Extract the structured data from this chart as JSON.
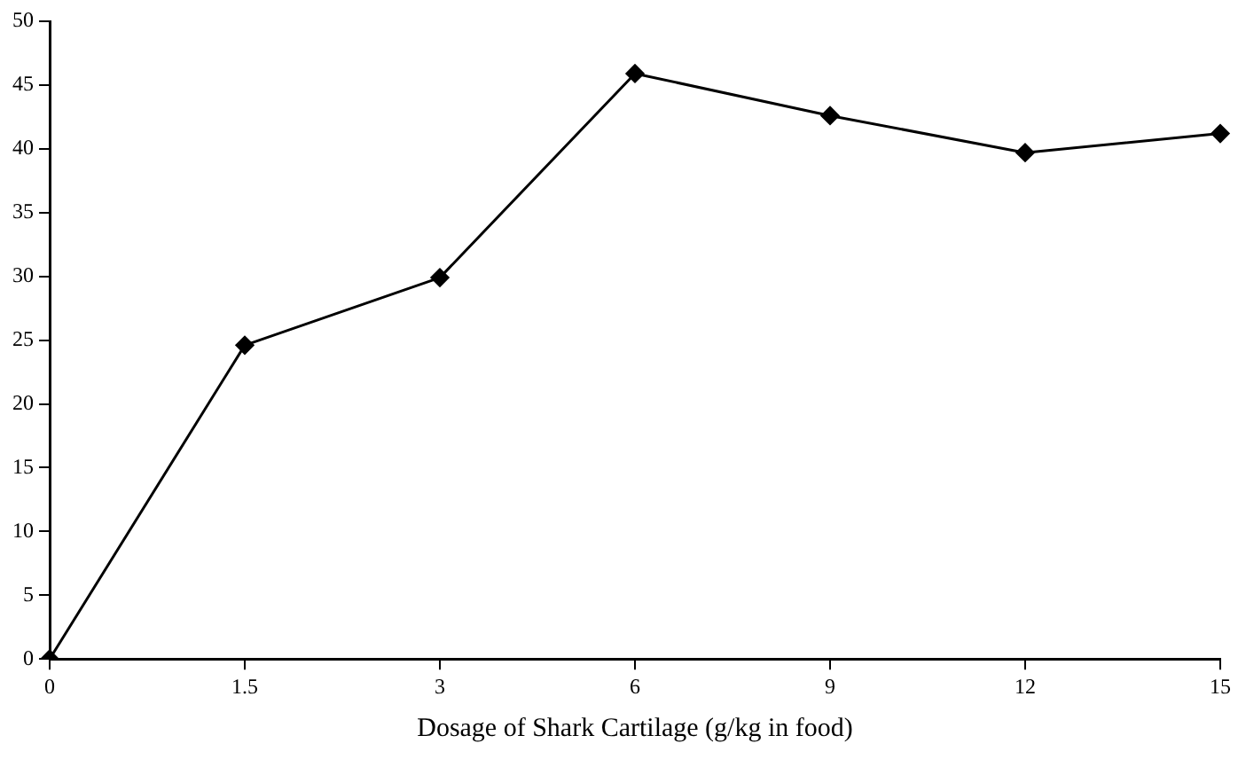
{
  "chart_data": {
    "type": "line",
    "xlabel": "Dosage of Shark Cartilage (g/kg in food)",
    "categories": [
      "0",
      "1.5",
      "3",
      "6",
      "9",
      "12",
      "15"
    ],
    "series": [
      {
        "color": "#000000",
        "values": [
          0,
          24.6,
          29.9,
          45.9,
          42.6,
          39.7,
          41.2
        ]
      }
    ],
    "ylim": [
      0,
      50
    ],
    "yticks": [
      0,
      5,
      10,
      15,
      20,
      25,
      30,
      35,
      40,
      45,
      50
    ],
    "grid": false,
    "legend": false,
    "marker": "diamond",
    "line_style": "solid"
  }
}
